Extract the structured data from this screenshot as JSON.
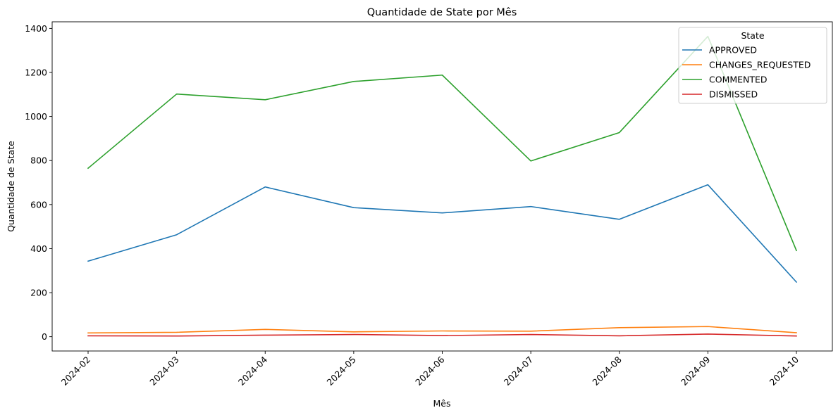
{
  "chart_data": {
    "type": "line",
    "title": "Quantidade de State por Mês",
    "xlabel": "Mês",
    "ylabel": "Quantidade de State",
    "x": [
      "2024-02",
      "2024-03",
      "2024-04",
      "2024-05",
      "2024-06",
      "2024-07",
      "2024-08",
      "2024-09",
      "2024-10"
    ],
    "ylim": [
      -65,
      1430
    ],
    "yticks": [
      0,
      200,
      400,
      600,
      800,
      1000,
      1200,
      1400
    ],
    "grid": false,
    "legend": {
      "title": "State",
      "placement": "top-right"
    },
    "series": [
      {
        "name": "APPROVED",
        "color": "#1f77b4",
        "values": [
          343,
          463,
          680,
          586,
          562,
          591,
          533,
          690,
          248
        ]
      },
      {
        "name": "CHANGES_REQUESTED",
        "color": "#ff7f0e",
        "values": [
          17,
          20,
          33,
          22,
          26,
          25,
          41,
          46,
          18
        ]
      },
      {
        "name": "COMMENTED",
        "color": "#2ca02c",
        "values": [
          765,
          1102,
          1076,
          1159,
          1188,
          798,
          927,
          1364,
          391
        ]
      },
      {
        "name": "DISMISSED",
        "color": "#d62728",
        "values": [
          4,
          3,
          7,
          10,
          5,
          10,
          4,
          12,
          3
        ]
      }
    ]
  }
}
